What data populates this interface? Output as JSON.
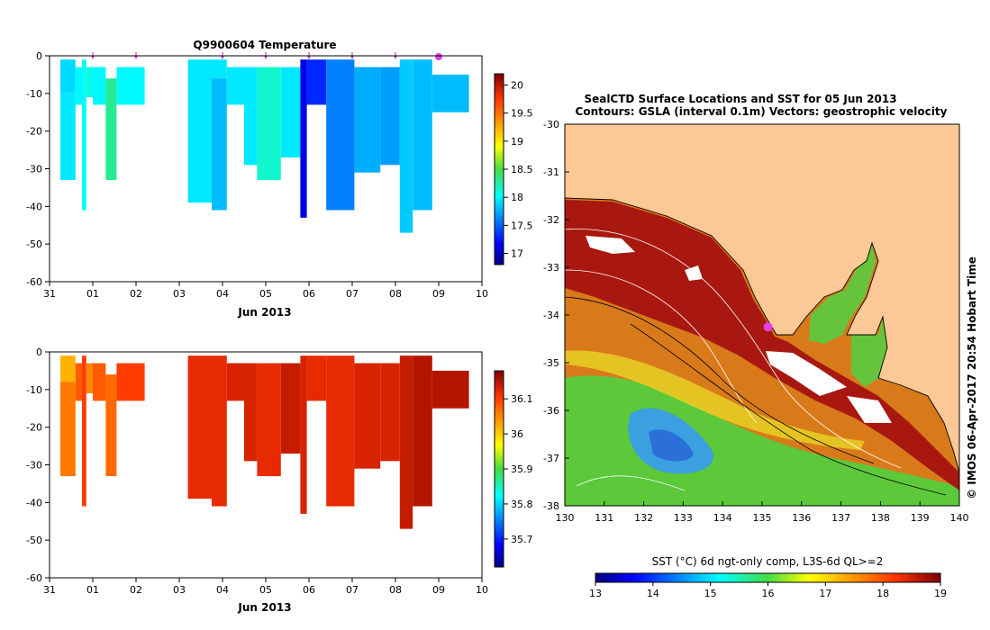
{
  "chart_data": [
    {
      "type": "heatmap",
      "title": "Q9900604  Temperature",
      "xlabel": "Jun 2013",
      "ylabel": "",
      "x_tick_labels": [
        "31",
        "01",
        "02",
        "03",
        "04",
        "05",
        "06",
        "07",
        "08",
        "09",
        "10"
      ],
      "x_tick_values_days": [
        0,
        1,
        2,
        3,
        4,
        5,
        6,
        7,
        8,
        9,
        10
      ],
      "xlim_days": [
        0,
        10
      ],
      "ylim": [
        -60,
        0
      ],
      "y_tick_values": [
        0,
        -10,
        -20,
        -30,
        -40,
        -50,
        -60
      ],
      "y_tick_labels": [
        "0",
        "-10",
        "-20",
        "-30",
        "-40",
        "-50",
        "-60"
      ],
      "colorbar": {
        "min": 16.8,
        "max": 20.2,
        "ticks": [
          20,
          19.5,
          19,
          18.5,
          18,
          17.5,
          17
        ],
        "tick_labels": [
          "20",
          "19.5",
          "19",
          "18.5",
          "18",
          "17.5",
          "17"
        ]
      },
      "profile_markers_days": [
        1,
        2,
        4,
        5,
        6,
        7,
        8
      ],
      "highlight_marker_day": 9,
      "profiles": [
        {
          "x0": 0.25,
          "x1": 0.6,
          "cells": [
            {
              "top": -1,
              "bottom": -10,
              "value": 17.9
            },
            {
              "top": -10,
              "bottom": -33,
              "value": 17.95
            }
          ]
        },
        {
          "x0": 0.6,
          "x1": 0.75,
          "cells": [
            {
              "top": -3,
              "bottom": -13,
              "value": 18.0
            }
          ]
        },
        {
          "x0": 0.75,
          "x1": 0.85,
          "cells": [
            {
              "top": -1,
              "bottom": -41,
              "value": 18.05
            }
          ]
        },
        {
          "x0": 0.85,
          "x1": 1.0,
          "cells": [
            {
              "top": -3,
              "bottom": -11,
              "value": 18.1
            }
          ]
        },
        {
          "x0": 1.0,
          "x1": 1.3,
          "cells": [
            {
              "top": -3,
              "bottom": -13,
              "value": 18.0
            }
          ]
        },
        {
          "x0": 1.3,
          "x1": 1.55,
          "cells": [
            {
              "top": -6,
              "bottom": -33,
              "value": 18.3
            }
          ]
        },
        {
          "x0": 1.55,
          "x1": 2.2,
          "cells": [
            {
              "top": -3,
              "bottom": -13,
              "value": 18.0
            }
          ]
        },
        {
          "x0": 3.2,
          "x1": 3.75,
          "cells": [
            {
              "top": -1,
              "bottom": -39,
              "value": 17.95
            }
          ]
        },
        {
          "x0": 3.75,
          "x1": 4.1,
          "cells": [
            {
              "top": -1,
              "bottom": -6,
              "value": 17.95
            },
            {
              "top": -6,
              "bottom": -41,
              "value": 17.8
            }
          ]
        },
        {
          "x0": 4.1,
          "x1": 4.5,
          "cells": [
            {
              "top": -3,
              "bottom": -13,
              "value": 17.95
            }
          ]
        },
        {
          "x0": 4.5,
          "x1": 4.8,
          "cells": [
            {
              "top": -3,
              "bottom": -29,
              "value": 17.95
            }
          ]
        },
        {
          "x0": 4.8,
          "x1": 5.35,
          "cells": [
            {
              "top": -3,
              "bottom": -33,
              "value": 18.15
            }
          ]
        },
        {
          "x0": 5.35,
          "x1": 5.8,
          "cells": [
            {
              "top": -3,
              "bottom": -27,
              "value": 17.95
            }
          ]
        },
        {
          "x0": 5.8,
          "x1": 5.95,
          "cells": [
            {
              "top": -1,
              "bottom": -43,
              "value": 17.1
            }
          ]
        },
        {
          "x0": 5.95,
          "x1": 6.4,
          "cells": [
            {
              "top": -1,
              "bottom": -13,
              "value": 17.3
            }
          ]
        },
        {
          "x0": 6.4,
          "x1": 7.05,
          "cells": [
            {
              "top": -1,
              "bottom": -41,
              "value": 17.6
            }
          ]
        },
        {
          "x0": 7.05,
          "x1": 7.65,
          "cells": [
            {
              "top": -3,
              "bottom": -31,
              "value": 17.75
            }
          ]
        },
        {
          "x0": 7.65,
          "x1": 8.1,
          "cells": [
            {
              "top": -3,
              "bottom": -29,
              "value": 17.7
            }
          ]
        },
        {
          "x0": 8.1,
          "x1": 8.4,
          "cells": [
            {
              "top": -1,
              "bottom": -47,
              "value": 17.85
            }
          ]
        },
        {
          "x0": 8.4,
          "x1": 8.85,
          "cells": [
            {
              "top": -1,
              "bottom": -41,
              "value": 17.8
            }
          ]
        },
        {
          "x0": 8.85,
          "x1": 9.7,
          "cells": [
            {
              "top": -5,
              "bottom": -15,
              "value": 17.8
            }
          ]
        }
      ]
    },
    {
      "type": "heatmap",
      "title": "",
      "xlabel": "Jun 2013",
      "ylabel": "",
      "x_tick_labels": [
        "31",
        "01",
        "02",
        "03",
        "04",
        "05",
        "06",
        "07",
        "08",
        "09",
        "10"
      ],
      "x_tick_values_days": [
        0,
        1,
        2,
        3,
        4,
        5,
        6,
        7,
        8,
        9,
        10
      ],
      "xlim_days": [
        0,
        10
      ],
      "ylim": [
        -60,
        0
      ],
      "y_tick_values": [
        0,
        -10,
        -20,
        -30,
        -40,
        -50,
        -60
      ],
      "y_tick_labels": [
        "0",
        "-10",
        "-20",
        "-30",
        "-40",
        "-50",
        "-60"
      ],
      "colorbar": {
        "min": 35.62,
        "max": 36.18,
        "ticks": [
          36.1,
          36,
          35.9,
          35.8,
          35.7
        ],
        "tick_labels": [
          "36.1",
          "36",
          "35.9",
          "35.8",
          "35.7"
        ]
      },
      "profiles": [
        {
          "x0": 0.25,
          "x1": 0.6,
          "cells": [
            {
              "top": -1,
              "bottom": -8,
              "value": 36.02
            },
            {
              "top": -8,
              "bottom": -33,
              "value": 36.06
            }
          ]
        },
        {
          "x0": 0.6,
          "x1": 0.75,
          "cells": [
            {
              "top": -3,
              "bottom": -13,
              "value": 36.08
            }
          ]
        },
        {
          "x0": 0.75,
          "x1": 0.85,
          "cells": [
            {
              "top": -1,
              "bottom": -41,
              "value": 36.1
            }
          ]
        },
        {
          "x0": 0.85,
          "x1": 1.0,
          "cells": [
            {
              "top": -3,
              "bottom": -11,
              "value": 36.05
            }
          ]
        },
        {
          "x0": 1.0,
          "x1": 1.3,
          "cells": [
            {
              "top": -3,
              "bottom": -13,
              "value": 36.08
            }
          ]
        },
        {
          "x0": 1.3,
          "x1": 1.55,
          "cells": [
            {
              "top": -6,
              "bottom": -33,
              "value": 36.07
            }
          ]
        },
        {
          "x0": 1.55,
          "x1": 2.2,
          "cells": [
            {
              "top": -3,
              "bottom": -13,
              "value": 36.1
            }
          ]
        },
        {
          "x0": 3.2,
          "x1": 3.75,
          "cells": [
            {
              "top": -1,
              "bottom": -39,
              "value": 36.12
            }
          ]
        },
        {
          "x0": 3.75,
          "x1": 4.1,
          "cells": [
            {
              "top": -1,
              "bottom": -41,
              "value": 36.12
            }
          ]
        },
        {
          "x0": 4.1,
          "x1": 4.5,
          "cells": [
            {
              "top": -3,
              "bottom": -13,
              "value": 36.13
            }
          ]
        },
        {
          "x0": 4.5,
          "x1": 4.8,
          "cells": [
            {
              "top": -3,
              "bottom": -29,
              "value": 36.13
            }
          ]
        },
        {
          "x0": 4.8,
          "x1": 5.35,
          "cells": [
            {
              "top": -3,
              "bottom": -33,
              "value": 36.12
            }
          ]
        },
        {
          "x0": 5.35,
          "x1": 5.8,
          "cells": [
            {
              "top": -3,
              "bottom": -27,
              "value": 36.14
            }
          ]
        },
        {
          "x0": 5.8,
          "x1": 5.95,
          "cells": [
            {
              "top": -1,
              "bottom": -43,
              "value": 36.13
            }
          ]
        },
        {
          "x0": 5.95,
          "x1": 6.4,
          "cells": [
            {
              "top": -1,
              "bottom": -13,
              "value": 36.12
            }
          ]
        },
        {
          "x0": 6.4,
          "x1": 7.05,
          "cells": [
            {
              "top": -1,
              "bottom": -41,
              "value": 36.12
            }
          ]
        },
        {
          "x0": 7.05,
          "x1": 7.65,
          "cells": [
            {
              "top": -3,
              "bottom": -31,
              "value": 36.13
            }
          ]
        },
        {
          "x0": 7.65,
          "x1": 8.1,
          "cells": [
            {
              "top": -3,
              "bottom": -29,
              "value": 36.13
            }
          ]
        },
        {
          "x0": 8.1,
          "x1": 8.4,
          "cells": [
            {
              "top": -1,
              "bottom": -47,
              "value": 36.14
            }
          ]
        },
        {
          "x0": 8.4,
          "x1": 8.85,
          "cells": [
            {
              "top": -1,
              "bottom": -41,
              "value": 36.15
            }
          ]
        },
        {
          "x0": 8.85,
          "x1": 9.7,
          "cells": [
            {
              "top": -5,
              "bottom": -15,
              "value": 36.15
            }
          ]
        }
      ]
    },
    {
      "type": "heatmap",
      "title_line1": "SealCTD Surface Locations and SST for 05 Jun 2013",
      "title_line2": "Contours: GSLA (interval 0.1m) Vectors: geostrophic velocity",
      "xlim": [
        130,
        140
      ],
      "ylim": [
        -38,
        -30
      ],
      "x_tick_values": [
        130,
        131,
        132,
        133,
        134,
        135,
        136,
        137,
        138,
        139,
        140
      ],
      "x_tick_labels": [
        "130",
        "131",
        "132",
        "133",
        "134",
        "135",
        "136",
        "137",
        "138",
        "139",
        "140"
      ],
      "y_tick_values": [
        -30,
        -31,
        -32,
        -33,
        -34,
        -35,
        -36,
        -37,
        -38
      ],
      "y_tick_labels": [
        "-30",
        "-31",
        "-32",
        "-33",
        "-34",
        "-35",
        "-36",
        "-37",
        "-38"
      ],
      "seal_location": {
        "lon": 135.15,
        "lat": -34.25
      },
      "colorbar": {
        "label": "SST (°C) 6d ngt-only comp, L3S-6d QL>=2",
        "min": 13,
        "max": 19,
        "ticks": [
          13,
          14,
          15,
          16,
          17,
          18,
          19
        ],
        "tick_labels": [
          "13",
          "14",
          "15",
          "16",
          "17",
          "18",
          "19"
        ]
      },
      "side_label": "© IMOS 06-Apr-2017 20:54 Hobart Time"
    }
  ],
  "colors": {
    "land": "#fcc896",
    "seal_marker": "#e23fe8",
    "axis": "#000000"
  }
}
